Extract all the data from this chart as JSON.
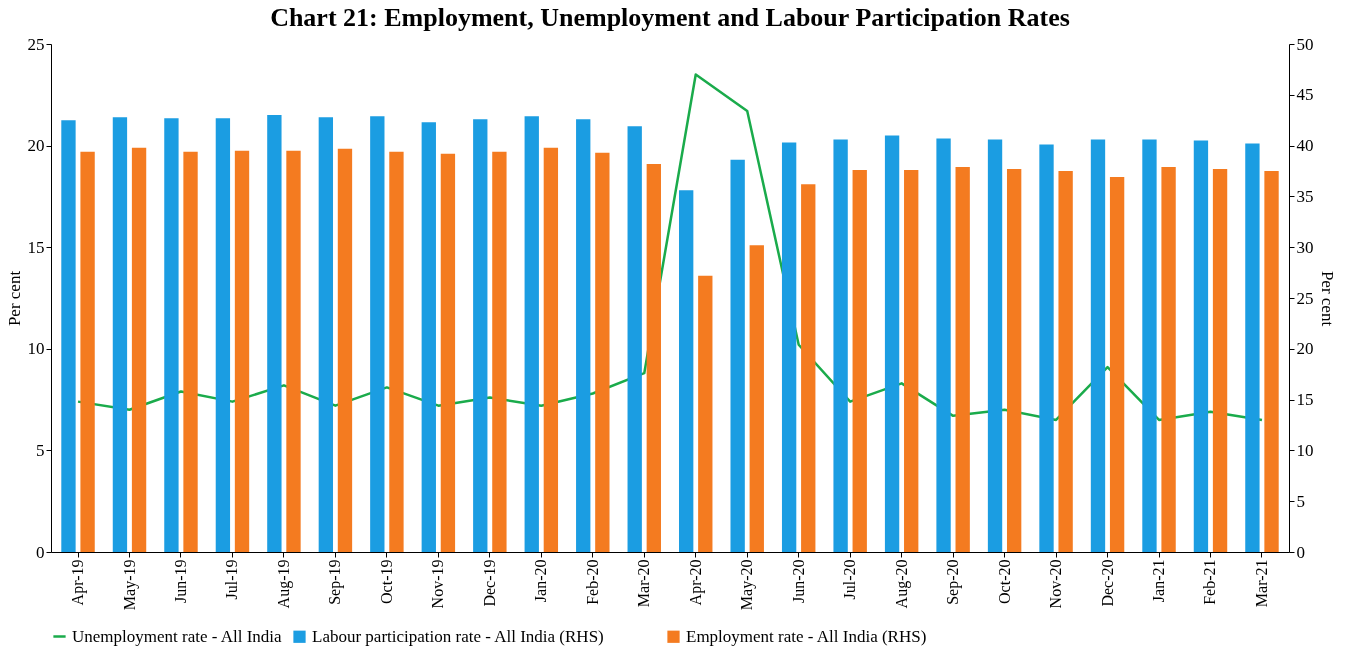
{
  "chart_data": {
    "type": "bar",
    "title": "Chart 21: Employment, Unemployment and Labour Participation Rates",
    "categories": [
      "Apr-19",
      "May-19",
      "Jun-19",
      "Jul-19",
      "Aug-19",
      "Sep-19",
      "Oct-19",
      "Nov-19",
      "Dec-19",
      "Jan-20",
      "Feb-20",
      "Mar-20",
      "Apr-20",
      "May-20",
      "Jun-20",
      "Jul-20",
      "Aug-20",
      "Sep-20",
      "Oct-20",
      "Nov-20",
      "Dec-20",
      "Jan-21",
      "Feb-21",
      "Mar-21"
    ],
    "series": [
      {
        "name": "Labour participation rate - All India (RHS)",
        "axis": "y2",
        "color": "#1b9de2",
        "values": [
          42.5,
          42.8,
          42.7,
          42.7,
          43.0,
          42.8,
          42.9,
          42.3,
          42.6,
          42.9,
          42.6,
          41.9,
          35.6,
          38.6,
          40.3,
          40.6,
          41.0,
          40.7,
          40.6,
          40.1,
          40.6,
          40.6,
          40.5,
          40.2
        ]
      },
      {
        "name": "Employment rate - All India (RHS)",
        "axis": "y2",
        "color": "#f47b20",
        "values": [
          39.4,
          39.8,
          39.4,
          39.5,
          39.5,
          39.7,
          39.4,
          39.2,
          39.4,
          39.8,
          39.3,
          38.2,
          27.2,
          30.2,
          36.2,
          37.6,
          37.6,
          37.9,
          37.7,
          37.5,
          36.9,
          37.9,
          37.7,
          37.5
        ]
      },
      {
        "name": "Unemployment rate - All India",
        "type": "line",
        "color": "#1aab4b",
        "values": [
          7.4,
          7.0,
          7.9,
          7.4,
          8.2,
          7.2,
          8.1,
          7.2,
          7.6,
          7.2,
          7.8,
          8.8,
          23.5,
          21.7,
          10.2,
          7.4,
          8.3,
          6.7,
          7.0,
          6.5,
          9.1,
          6.5,
          6.9,
          6.5
        ]
      }
    ],
    "ylabel": "Per cent",
    "y2label": "Per cent",
    "ylim": [
      0,
      25
    ],
    "yticks": [
      0,
      5,
      10,
      15,
      20,
      25
    ],
    "y2lim": [
      0,
      50
    ],
    "y2ticks": [
      0,
      5,
      10,
      15,
      20,
      25,
      30,
      35,
      40,
      45,
      50
    ],
    "grid": false,
    "legend": "bottom",
    "marker": "none",
    "line_style": "solid"
  }
}
